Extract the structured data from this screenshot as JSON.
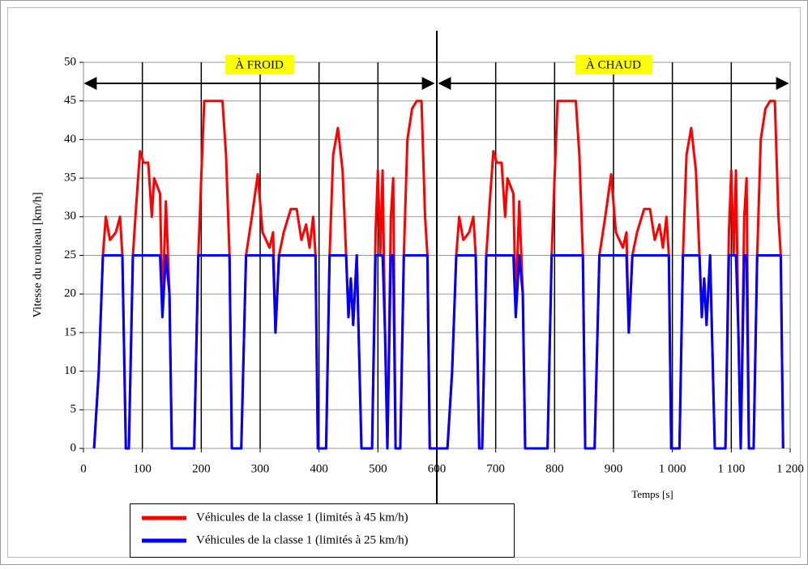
{
  "chart_data": {
    "type": "line",
    "y_label": "Vitesse du rouleau [km/h]",
    "x_label": "Temps [s]",
    "annotations": [
      "À FROID",
      "À CHAUD"
    ],
    "xlim": [
      0,
      1200
    ],
    "ylim": [
      0,
      50
    ],
    "xticks": [
      0,
      100,
      200,
      300,
      400,
      500,
      600,
      700,
      800,
      900,
      {
        "value": 1000,
        "label": "1 000"
      },
      {
        "value": 1100,
        "label": "1 100"
      },
      {
        "value": 1200,
        "label": "1 200"
      }
    ],
    "yticks": [
      0,
      5,
      10,
      15,
      20,
      25,
      30,
      35,
      40,
      45,
      50
    ],
    "grid": true,
    "x": [
      18,
      26,
      33,
      38,
      45,
      55,
      62,
      66,
      72,
      77,
      84,
      90,
      96,
      102,
      110,
      116,
      120,
      130,
      134,
      140,
      146,
      150,
      188,
      195,
      200,
      205,
      236,
      242,
      248,
      252,
      268,
      276,
      286,
      296,
      304,
      316,
      322,
      326,
      332,
      340,
      352,
      362,
      370,
      378,
      384,
      390,
      394,
      398,
      412,
      418,
      424,
      432,
      440,
      446,
      450,
      454,
      458,
      464,
      472,
      490,
      496,
      500,
      504,
      508,
      512,
      516,
      522,
      526,
      530,
      538,
      544,
      550,
      558,
      566,
      574,
      580,
      584,
      588,
      618,
      626,
      633,
      638,
      645,
      655,
      662,
      666,
      672,
      677,
      684,
      690,
      696,
      702,
      710,
      716,
      720,
      730,
      734,
      740,
      746,
      750,
      788,
      795,
      800,
      805,
      836,
      842,
      848,
      852,
      868,
      876,
      886,
      896,
      904,
      916,
      922,
      926,
      932,
      940,
      952,
      962,
      970,
      978,
      984,
      990,
      994,
      998,
      1012,
      1018,
      1024,
      1032,
      1040,
      1046,
      1050,
      1054,
      1058,
      1064,
      1072,
      1090,
      1096,
      1100,
      1104,
      1108,
      1112,
      1116,
      1122,
      1126,
      1130,
      1138,
      1144,
      1150,
      1158,
      1166,
      1174,
      1180,
      1184,
      1188
    ],
    "series": [
      {
        "name": "Véhicules de la classe 1 (limités à 45 km/h)",
        "color": "#ff0000",
        "values": [
          0,
          10,
          25,
          30,
          27,
          28,
          30,
          25,
          0,
          0,
          25,
          32,
          38.5,
          37,
          37,
          30,
          35,
          33,
          18,
          32,
          20,
          0,
          0,
          25,
          35,
          45,
          45,
          38,
          25,
          0,
          0,
          25,
          30,
          35.5,
          28,
          26,
          28,
          15,
          25,
          28,
          31,
          31,
          27,
          29,
          26,
          30,
          25,
          0,
          0,
          25,
          38,
          41.5,
          36,
          25,
          17,
          22,
          16,
          25,
          0,
          0,
          28,
          36,
          25,
          36,
          15,
          0,
          30,
          35,
          0,
          0,
          25,
          40,
          44,
          45,
          45,
          30,
          25,
          0,
          0,
          10,
          25,
          30,
          27,
          28,
          30,
          25,
          0,
          0,
          25,
          32,
          38.5,
          37,
          37,
          30,
          35,
          33,
          18,
          32,
          20,
          0,
          0,
          25,
          35,
          45,
          45,
          38,
          25,
          0,
          0,
          25,
          30,
          35.5,
          28,
          26,
          28,
          15,
          25,
          28,
          31,
          31,
          27,
          29,
          26,
          30,
          25,
          0,
          0,
          25,
          38,
          41.5,
          36,
          25,
          17,
          22,
          16,
          25,
          0,
          0,
          28,
          36,
          25,
          36,
          15,
          0,
          30,
          35,
          0,
          0,
          25,
          40,
          44,
          45,
          45,
          30,
          25,
          0
        ]
      },
      {
        "name": "Véhicules de la classe 1 (limités à 25 km/h)",
        "color": "#0000ff",
        "values": [
          0,
          10,
          25,
          25,
          25,
          25,
          25,
          25,
          0,
          0,
          25,
          25,
          25,
          25,
          25,
          25,
          25,
          25,
          17,
          25,
          20,
          0,
          0,
          25,
          25,
          25,
          25,
          25,
          25,
          0,
          0,
          25,
          25,
          25,
          25,
          25,
          25,
          15,
          25,
          25,
          25,
          25,
          25,
          25,
          25,
          25,
          25,
          0,
          0,
          25,
          25,
          25,
          25,
          25,
          17,
          22,
          16,
          25,
          0,
          0,
          25,
          25,
          25,
          25,
          15,
          0,
          25,
          25,
          0,
          0,
          25,
          25,
          25,
          25,
          25,
          25,
          25,
          0,
          0,
          10,
          25,
          25,
          25,
          25,
          25,
          25,
          0,
          0,
          25,
          25,
          25,
          25,
          25,
          25,
          25,
          25,
          17,
          25,
          20,
          0,
          0,
          25,
          25,
          25,
          25,
          25,
          25,
          0,
          0,
          25,
          25,
          25,
          25,
          25,
          25,
          15,
          25,
          25,
          25,
          25,
          25,
          25,
          25,
          25,
          25,
          0,
          0,
          25,
          25,
          25,
          25,
          25,
          17,
          22,
          16,
          25,
          0,
          0,
          25,
          25,
          25,
          25,
          15,
          0,
          25,
          25,
          0,
          0,
          25,
          25,
          25,
          25,
          25,
          25,
          25,
          0
        ]
      }
    ]
  }
}
